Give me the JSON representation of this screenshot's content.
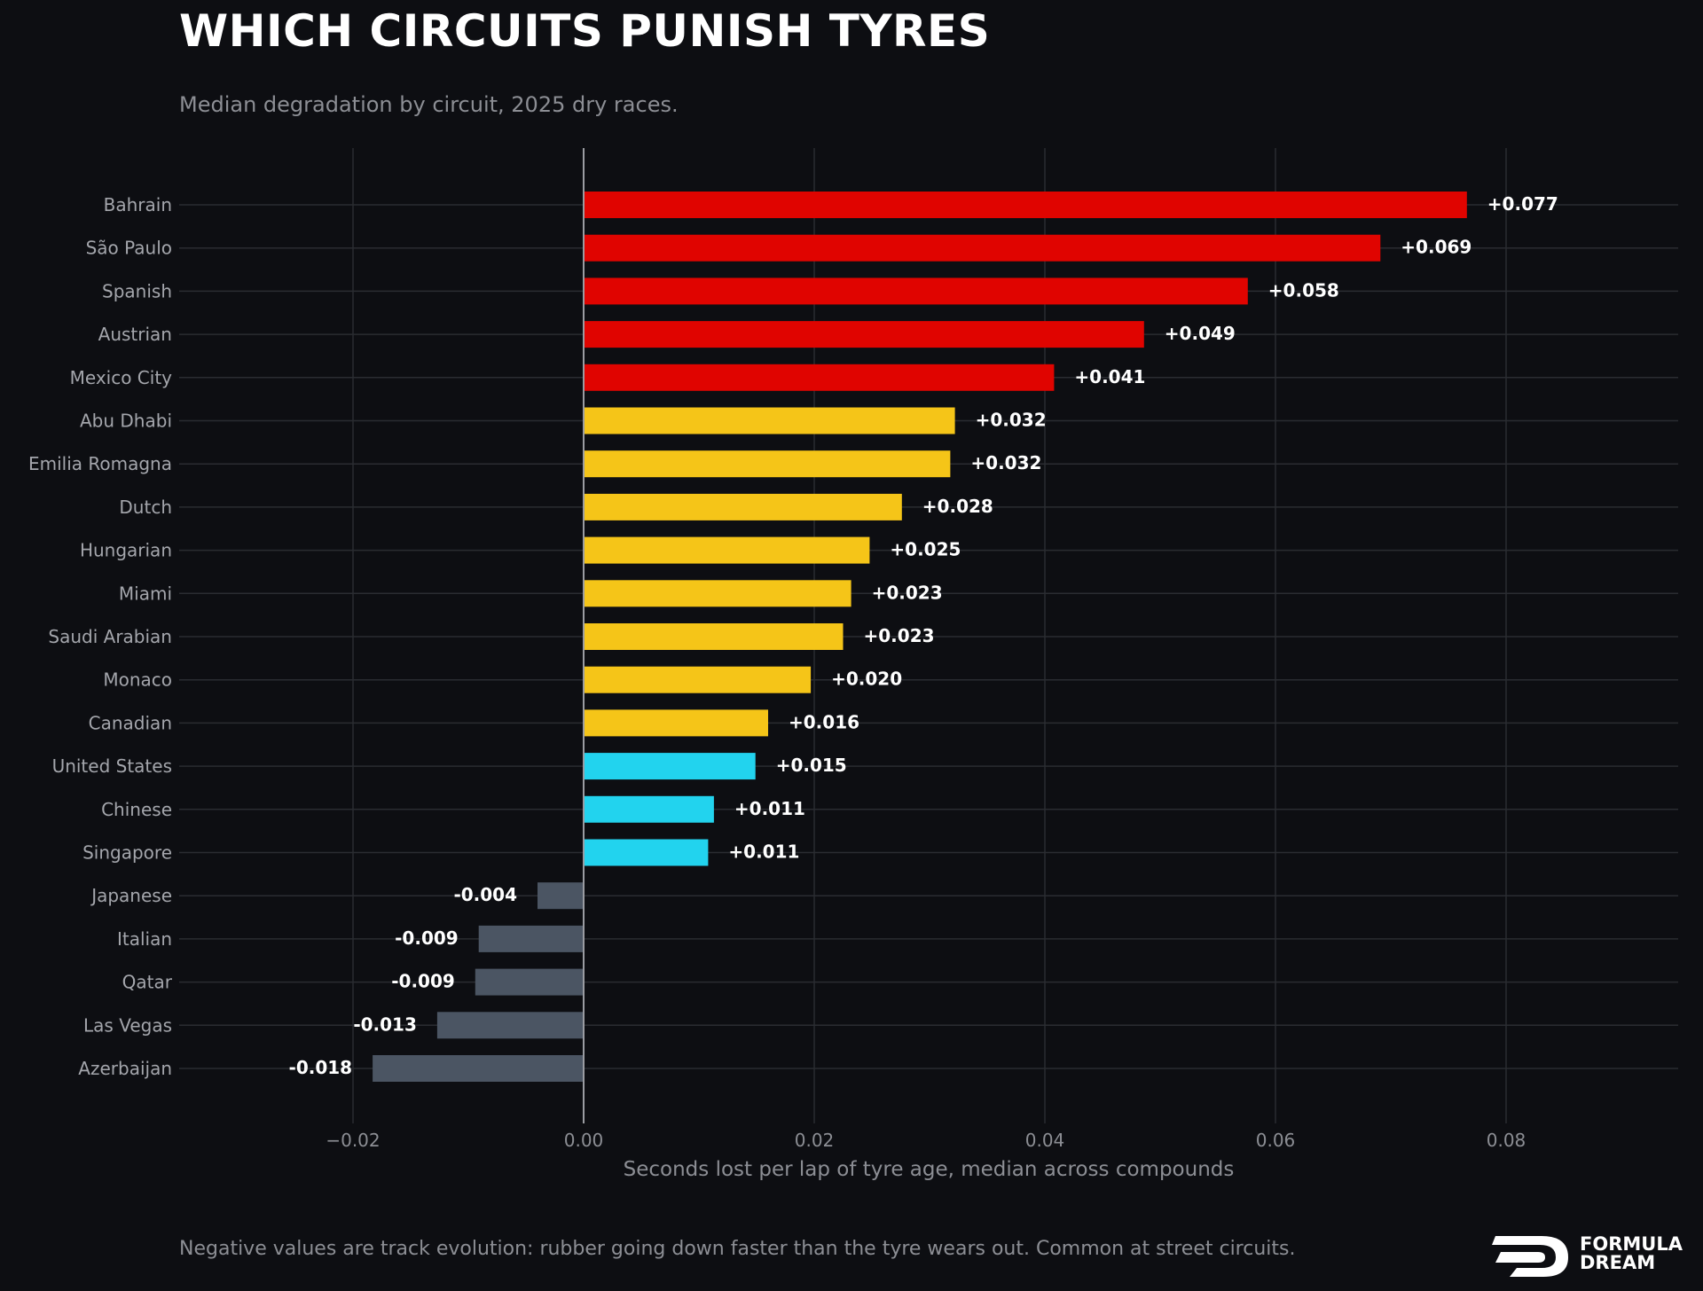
{
  "title": "WHICH CIRCUITS PUNISH TYRES",
  "subtitle": "Median degradation by circuit, 2025 dry races.",
  "footnote": "Negative values are track evolution: rubber going down faster than the tyre wears out. Common at street circuits.",
  "brand": {
    "line1": "FORMULA",
    "line2": "DREAM",
    "logo_icon": "formula-dream-logo-icon"
  },
  "colors": {
    "background": "#0d0e12",
    "high": "#e00400",
    "medium": "#f5c518",
    "low": "#22d3ee",
    "negative": "#4b5563",
    "grid": "#2a2c31",
    "zero_line": "#9a9ca2"
  },
  "chart_data": {
    "type": "bar",
    "orientation": "horizontal",
    "xlabel": "Seconds lost per lap of tyre age, median across compounds",
    "xlim": [
      -0.035,
      0.095
    ],
    "xticks": [
      -0.02,
      0.0,
      0.02,
      0.04,
      0.06,
      0.08
    ],
    "xtick_labels": [
      "−0.02",
      "0.00",
      "0.02",
      "0.04",
      "0.06",
      "0.08"
    ],
    "grid": true,
    "categories": [
      "Bahrain",
      "São Paulo",
      "Spanish",
      "Austrian",
      "Mexico City",
      "Abu Dhabi",
      "Emilia Romagna",
      "Dutch",
      "Hungarian",
      "Miami",
      "Saudi Arabian",
      "Monaco",
      "Canadian",
      "United States",
      "Chinese",
      "Singapore",
      "Japanese",
      "Italian",
      "Qatar",
      "Las Vegas",
      "Azerbaijan"
    ],
    "values": [
      0.0766,
      0.0691,
      0.0576,
      0.0486,
      0.0408,
      0.0322,
      0.0318,
      0.0276,
      0.0248,
      0.0232,
      0.0225,
      0.0197,
      0.016,
      0.0149,
      0.0113,
      0.0108,
      -0.004,
      -0.0091,
      -0.0094,
      -0.0127,
      -0.0183
    ],
    "data_labels": [
      "+0.077",
      "+0.069",
      "+0.058",
      "+0.049",
      "+0.041",
      "+0.032",
      "+0.032",
      "+0.028",
      "+0.025",
      "+0.023",
      "+0.023",
      "+0.020",
      "+0.016",
      "+0.015",
      "+0.011",
      "+0.011",
      "-0.004",
      "-0.009",
      "-0.009",
      "-0.013",
      "-0.018"
    ],
    "bar_groups": [
      "high",
      "high",
      "high",
      "high",
      "high",
      "medium",
      "medium",
      "medium",
      "medium",
      "medium",
      "medium",
      "medium",
      "medium",
      "low",
      "low",
      "low",
      "negative",
      "negative",
      "negative",
      "negative",
      "negative"
    ]
  }
}
